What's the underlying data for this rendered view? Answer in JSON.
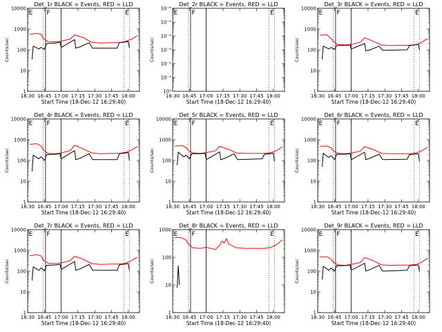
{
  "figure": {
    "xtitle": "Start Time (18-Dec-12 16:29:40)",
    "ytitle": "Counts/sec",
    "xticks": [
      "16:30",
      "16:45",
      "17:00",
      "17:15",
      "17:30",
      "17:45",
      "18:00"
    ],
    "colors": {
      "events": "#000000",
      "lld": "#ff0000"
    }
  },
  "chart_data": [
    {
      "type": "line",
      "title": "Det_1r BLACK = Events, RED = LLD",
      "yscale": "log",
      "ylim": [
        1,
        10000
      ],
      "xlim_minutes": [
        16.5,
        18.17
      ],
      "yticks": [
        "1",
        "10",
        "100",
        "1000",
        "10000"
      ],
      "solid_markers": [
        "16:46",
        "17:00"
      ],
      "dotted_markers": [
        "16:44",
        "17:56",
        "18:01"
      ],
      "segment_labels": [
        {
          "text": "E",
          "at": "16:31"
        },
        {
          "text": "F",
          "at": "16:47"
        },
        {
          "text": "E",
          "at": "17:57"
        }
      ],
      "series": [
        {
          "x": [
            "16:32",
            "16:38",
            "16:42",
            "16:44",
            "16:48",
            "16:55",
            "17:00",
            "17:08",
            "17:12",
            "17:20",
            "17:27",
            "17:35",
            "17:45",
            "17:52",
            "17:58",
            "18:03",
            "18:08"
          ],
          "y": [
            560,
            620,
            560,
            350,
            250,
            240,
            260,
            330,
            520,
            380,
            230,
            210,
            220,
            220,
            260,
            330,
            480
          ]
        },
        {
          "x": [
            "16:34",
            "16:35",
            "16:40",
            "16:42",
            "16:45",
            "16:47",
            "16:55",
            "16:59",
            "17:00",
            "17:12",
            "17:13",
            "17:17",
            "17:25",
            "17:28",
            "17:50",
            "17:52",
            "18:00",
            "18:01"
          ],
          "y": [
            35,
            150,
            110,
            130,
            105,
            200,
            210,
            230,
            130,
            310,
            120,
            140,
            220,
            120,
            120,
            220,
            250,
            120
          ]
        }
      ]
    },
    {
      "type": "line",
      "title": "Det_2r BLACK = Events, RED = LLD",
      "yscale": "log",
      "ylim": [
        1,
        1e-06
      ],
      "xlim_minutes": [
        16.5,
        18.17
      ],
      "yticks": [
        "10⁰",
        "10⁻¹",
        "10⁻²",
        "10⁻³",
        "10⁻⁴",
        "10⁻⁵",
        "10⁻⁶"
      ],
      "solid_markers": [
        "16:46",
        "17:00"
      ],
      "dotted_markers": [
        "16:44",
        "17:56",
        "18:01"
      ],
      "segment_labels": [
        {
          "text": "E",
          "at": "16:31"
        },
        {
          "text": "F",
          "at": "16:47"
        },
        {
          "text": "E",
          "at": "17:57"
        }
      ],
      "series": []
    },
    {
      "type": "line",
      "title": "Det_3r BLACK = Events, RED = LLD",
      "yscale": "log",
      "ylim": [
        1,
        10000
      ],
      "xlim_minutes": [
        16.5,
        18.17
      ],
      "yticks": [
        "1",
        "10",
        "100",
        "1000",
        "10000"
      ],
      "solid_markers": [
        "16:46",
        "17:00"
      ],
      "dotted_markers": [
        "16:44",
        "17:56",
        "18:01"
      ],
      "segment_labels": [
        {
          "text": "E",
          "at": "16:31"
        },
        {
          "text": "F",
          "at": "16:47"
        },
        {
          "text": "E",
          "at": "17:57"
        }
      ],
      "series": [
        {
          "x": [
            "16:32",
            "16:38",
            "16:42",
            "16:44",
            "16:48",
            "16:55",
            "17:00",
            "17:08",
            "17:12",
            "17:20",
            "17:27",
            "17:35",
            "17:45",
            "17:52",
            "17:58",
            "18:03",
            "18:08"
          ],
          "y": [
            500,
            540,
            350,
            250,
            180,
            170,
            180,
            230,
            380,
            250,
            170,
            160,
            165,
            165,
            175,
            230,
            350
          ]
        },
        {
          "x": [
            "16:34",
            "16:35",
            "16:40",
            "16:42",
            "16:45",
            "16:47",
            "16:55",
            "16:59",
            "17:00",
            "17:12",
            "17:13",
            "17:17",
            "17:25",
            "17:28",
            "17:50",
            "17:52",
            "18:00",
            "18:01"
          ],
          "y": [
            35,
            150,
            110,
            130,
            105,
            160,
            165,
            170,
            110,
            200,
            90,
            100,
            150,
            95,
            100,
            160,
            180,
            100
          ]
        }
      ]
    },
    {
      "type": "line",
      "title": "Det_4r BLACK = Events, RED = LLD",
      "yscale": "log",
      "ylim": [
        1,
        10000
      ],
      "xlim_minutes": [
        16.5,
        18.17
      ],
      "yticks": [
        "1",
        "10",
        "100",
        "1000",
        "10000"
      ],
      "solid_markers": [
        "16:46",
        "17:00"
      ],
      "dotted_markers": [
        "16:44",
        "17:56",
        "18:01"
      ],
      "segment_labels": [
        {
          "text": "E",
          "at": "16:31"
        },
        {
          "text": "F",
          "at": "16:47"
        },
        {
          "text": "E",
          "at": "17:57"
        }
      ],
      "series": [
        {
          "x": [
            "16:32",
            "16:38",
            "16:42",
            "16:44",
            "16:48",
            "16:55",
            "17:00",
            "17:08",
            "17:12",
            "17:20",
            "17:27",
            "17:35",
            "17:45",
            "17:52",
            "17:58",
            "18:03",
            "18:08"
          ],
          "y": [
            600,
            650,
            500,
            320,
            220,
            210,
            230,
            300,
            540,
            360,
            230,
            210,
            220,
            220,
            250,
            320,
            470
          ]
        },
        {
          "x": [
            "16:34",
            "16:35",
            "16:40",
            "16:42",
            "16:45",
            "16:47",
            "16:55",
            "16:59",
            "17:00",
            "17:12",
            "17:13",
            "17:17",
            "17:25",
            "17:28",
            "17:50",
            "17:52",
            "18:00",
            "18:01"
          ],
          "y": [
            30,
            180,
            120,
            150,
            100,
            190,
            200,
            210,
            120,
            300,
            110,
            130,
            210,
            110,
            110,
            210,
            240,
            100
          ]
        }
      ]
    },
    {
      "type": "line",
      "title": "Det_5r BLACK = Events, RED = LLD",
      "yscale": "log",
      "ylim": [
        1,
        10000
      ],
      "xlim_minutes": [
        16.5,
        18.17
      ],
      "yticks": [
        "1",
        "10",
        "100",
        "1000",
        "10000"
      ],
      "solid_markers": [
        "16:46",
        "17:00"
      ],
      "dotted_markers": [
        "16:44",
        "17:56",
        "18:01"
      ],
      "segment_labels": [
        {
          "text": "E",
          "at": "16:31"
        },
        {
          "text": "F",
          "at": "16:47"
        },
        {
          "text": "E",
          "at": "17:57"
        }
      ],
      "series": [
        {
          "x": [
            "16:32",
            "16:38",
            "16:42",
            "16:44",
            "16:48",
            "16:55",
            "17:00",
            "17:08",
            "17:12",
            "17:20",
            "17:27",
            "17:35",
            "17:45",
            "17:52",
            "17:58",
            "18:03",
            "18:08"
          ],
          "y": [
            500,
            520,
            420,
            300,
            230,
            220,
            240,
            290,
            480,
            340,
            230,
            220,
            220,
            220,
            240,
            300,
            460
          ]
        },
        {
          "x": [
            "16:34",
            "16:35",
            "16:40",
            "16:42",
            "16:45",
            "16:47",
            "16:55",
            "16:59",
            "17:00",
            "17:12",
            "17:13",
            "17:17",
            "17:25",
            "17:28",
            "17:50",
            "17:52",
            "18:00",
            "18:01"
          ],
          "y": [
            60,
            250,
            150,
            180,
            120,
            210,
            210,
            220,
            110,
            260,
            110,
            130,
            210,
            110,
            120,
            200,
            220,
            90
          ]
        }
      ]
    },
    {
      "type": "line",
      "title": "Det_6r BLACK = Events, RED = LLD",
      "yscale": "log",
      "ylim": [
        1,
        10000
      ],
      "xlim_minutes": [
        16.5,
        18.17
      ],
      "yticks": [
        "1",
        "10",
        "100",
        "1000",
        "10000"
      ],
      "solid_markers": [
        "16:46",
        "17:00"
      ],
      "dotted_markers": [
        "16:44",
        "17:56",
        "18:01"
      ],
      "segment_labels": [
        {
          "text": "E",
          "at": "16:31"
        },
        {
          "text": "F",
          "at": "16:47"
        },
        {
          "text": "E",
          "at": "17:57"
        }
      ],
      "series": [
        {
          "x": [
            "16:32",
            "16:38",
            "16:42",
            "16:44",
            "16:48",
            "16:55",
            "17:00",
            "17:08",
            "17:12",
            "17:20",
            "17:27",
            "17:35",
            "17:45",
            "17:52",
            "17:58",
            "18:03",
            "18:08"
          ],
          "y": [
            480,
            500,
            400,
            290,
            220,
            210,
            230,
            280,
            460,
            330,
            220,
            210,
            210,
            210,
            230,
            290,
            430
          ]
        },
        {
          "x": [
            "16:34",
            "16:35",
            "16:40",
            "16:42",
            "16:45",
            "16:47",
            "16:55",
            "16:59",
            "17:00",
            "17:12",
            "17:13",
            "17:17",
            "17:25",
            "17:28",
            "17:50",
            "17:52",
            "18:00",
            "18:01"
          ],
          "y": [
            50,
            220,
            140,
            170,
            110,
            200,
            200,
            210,
            110,
            250,
            110,
            130,
            200,
            110,
            115,
            190,
            210,
            90
          ]
        }
      ]
    },
    {
      "type": "line",
      "title": "Det_7r BLACK = Events, RED = LLD",
      "yscale": "log",
      "ylim": [
        1,
        10000
      ],
      "xlim_minutes": [
        16.5,
        18.17
      ],
      "yticks": [
        "1",
        "10",
        "100",
        "1000",
        "10000"
      ],
      "solid_markers": [
        "16:46",
        "17:00"
      ],
      "dotted_markers": [
        "16:44",
        "17:56",
        "18:01"
      ],
      "segment_labels": [
        {
          "text": "E",
          "at": "16:31"
        },
        {
          "text": "F",
          "at": "16:47"
        },
        {
          "text": "E",
          "at": "17:57"
        }
      ],
      "series": [
        {
          "x": [
            "16:32",
            "16:38",
            "16:42",
            "16:44",
            "16:48",
            "16:55",
            "17:00",
            "17:08",
            "17:12",
            "17:20",
            "17:27",
            "17:35",
            "17:45",
            "17:52",
            "17:58",
            "18:03",
            "18:08"
          ],
          "y": [
            560,
            620,
            540,
            340,
            240,
            230,
            250,
            320,
            520,
            370,
            230,
            210,
            220,
            220,
            250,
            320,
            470
          ]
        },
        {
          "x": [
            "16:34",
            "16:35",
            "16:40",
            "16:42",
            "16:45",
            "16:47",
            "16:55",
            "16:59",
            "17:00",
            "17:12",
            "17:13",
            "17:17",
            "17:25",
            "17:28",
            "17:50",
            "17:52",
            "18:00",
            "18:01"
          ],
          "y": [
            35,
            160,
            110,
            140,
            105,
            190,
            200,
            210,
            120,
            290,
            110,
            130,
            210,
            110,
            110,
            200,
            230,
            110
          ]
        }
      ]
    },
    {
      "type": "line",
      "title": "Det_8r BLACK = Events, RED = LLD",
      "yscale": "log",
      "ylim": [
        1,
        1000
      ],
      "xlim_minutes": [
        16.5,
        18.17
      ],
      "yticks": [
        "1",
        "10",
        "100",
        "1000"
      ],
      "solid_markers": [
        "16:46",
        "17:00"
      ],
      "dotted_markers": [
        "16:44",
        "17:56",
        "18:01"
      ],
      "segment_labels": [
        {
          "text": "E",
          "at": "16:31"
        },
        {
          "text": "F",
          "at": "16:47"
        },
        {
          "text": "E",
          "at": "17:57"
        }
      ],
      "series": [
        {
          "x": [
            "16:32",
            "16:38",
            "16:42",
            "16:44",
            "16:48",
            "16:55",
            "17:00",
            "17:08",
            "17:12",
            "17:14",
            "17:16",
            "17:18",
            "17:20",
            "17:27",
            "17:35",
            "17:45",
            "17:52",
            "17:58",
            "18:03",
            "18:08"
          ],
          "y": [
            520,
            510,
            420,
            300,
            220,
            210,
            230,
            190,
            270,
            380,
            330,
            470,
            300,
            220,
            210,
            210,
            210,
            230,
            290,
            430
          ]
        },
        {
          "x": [
            "16:34",
            "16:35",
            "16:36"
          ],
          "y": [
            8,
            50,
            10
          ]
        }
      ]
    },
    {
      "type": "line",
      "title": "Det_9r BLACK = Events, RED = LLD",
      "yscale": "log",
      "ylim": [
        1,
        10000
      ],
      "xlim_minutes": [
        16.5,
        18.17
      ],
      "yticks": [
        "1",
        "10",
        "100",
        "1000",
        "10000"
      ],
      "solid_markers": [
        "16:46",
        "17:00"
      ],
      "dotted_markers": [
        "16:44",
        "17:56",
        "18:01"
      ],
      "segment_labels": [
        {
          "text": "E",
          "at": "16:31"
        },
        {
          "text": "F",
          "at": "16:47"
        },
        {
          "text": "E",
          "at": "17:57"
        }
      ],
      "series": [
        {
          "x": [
            "16:32",
            "16:38",
            "16:42",
            "16:44",
            "16:48",
            "16:55",
            "17:00",
            "17:08",
            "17:12",
            "17:20",
            "17:27",
            "17:35",
            "17:45",
            "17:52",
            "17:58",
            "18:03",
            "18:08"
          ],
          "y": [
            470,
            500,
            380,
            270,
            200,
            190,
            210,
            260,
            450,
            310,
            200,
            190,
            195,
            195,
            210,
            270,
            420
          ]
        },
        {
          "x": [
            "16:34",
            "16:35",
            "16:40",
            "16:42",
            "16:45",
            "16:47",
            "16:55",
            "16:59",
            "17:00",
            "17:12",
            "17:13",
            "17:17",
            "17:25",
            "17:28",
            "17:50",
            "17:52",
            "18:00",
            "18:01"
          ],
          "y": [
            40,
            170,
            110,
            140,
            100,
            180,
            185,
            195,
            110,
            240,
            100,
            120,
            190,
            100,
            110,
            180,
            200,
            95
          ]
        }
      ]
    }
  ]
}
